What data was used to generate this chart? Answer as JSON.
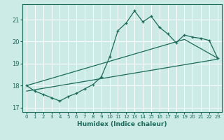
{
  "xlabel": "Humidex (Indice chaleur)",
  "bg_color": "#cceae6",
  "grid_color": "#ffffff",
  "line_color": "#1a6b5a",
  "xlim": [
    -0.5,
    23.5
  ],
  "ylim": [
    16.8,
    21.7
  ],
  "yticks": [
    17,
    18,
    19,
    20,
    21
  ],
  "xticks": [
    0,
    1,
    2,
    3,
    4,
    5,
    6,
    7,
    8,
    9,
    10,
    11,
    12,
    13,
    14,
    15,
    16,
    17,
    18,
    19,
    20,
    21,
    22,
    23
  ],
  "line1_x": [
    0,
    1,
    2,
    3,
    4,
    5,
    6,
    7,
    8,
    9,
    10,
    11,
    12,
    13,
    14,
    15,
    16,
    17,
    18,
    19,
    20,
    21,
    22,
    23
  ],
  "line1_y": [
    18.0,
    17.75,
    17.6,
    17.45,
    17.3,
    17.5,
    17.65,
    17.85,
    18.05,
    18.4,
    19.3,
    20.5,
    20.85,
    21.4,
    20.9,
    21.15,
    20.65,
    20.35,
    19.95,
    20.3,
    20.2,
    20.15,
    20.05,
    19.25
  ],
  "line2_x": [
    0,
    23
  ],
  "line2_y": [
    17.75,
    19.2
  ],
  "line3_x": [
    0,
    19,
    23
  ],
  "line3_y": [
    18.0,
    20.1,
    19.25
  ]
}
